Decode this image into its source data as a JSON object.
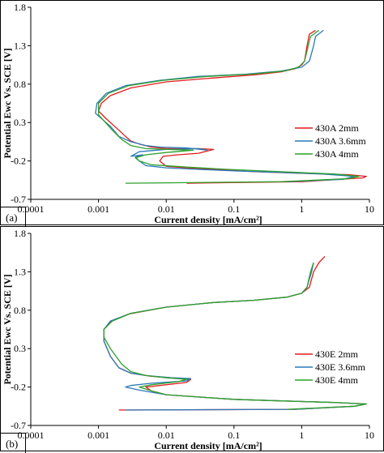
{
  "chart_data": [
    {
      "type": "line",
      "panel_label": "(a)",
      "xlabel": "Current density [mA/cm²]",
      "ylabel": "Potential Ewc Vs. SCE [V]",
      "xscale": "log",
      "xlim": [
        0.0001,
        10
      ],
      "ylim": [
        -0.7,
        1.8
      ],
      "x_ticks": [
        "0.0001",
        "0.001",
        "0.01",
        "0.1",
        "1",
        "10"
      ],
      "y_ticks": [
        "1.8",
        "1.3",
        "0.8",
        "0.3",
        "-0.2",
        "-0.7"
      ],
      "legend_position": "right",
      "series": [
        {
          "name": "430A 2mm",
          "color": "#e41a1c",
          "points": [
            [
              0.02,
              -0.49
            ],
            [
              1,
              -0.47
            ],
            [
              8,
              -0.42
            ],
            [
              9,
              -0.4
            ],
            [
              5,
              -0.38
            ],
            [
              1,
              -0.36
            ],
            [
              0.2,
              -0.34
            ],
            [
              0.05,
              -0.31
            ],
            [
              0.02,
              -0.29
            ],
            [
              0.01,
              -0.27
            ],
            [
              0.008,
              -0.2
            ],
            [
              0.009,
              -0.14
            ],
            [
              0.015,
              -0.12
            ],
            [
              0.03,
              -0.1
            ],
            [
              0.05,
              -0.05
            ],
            [
              0.03,
              -0.04
            ],
            [
              0.01,
              -0.04
            ],
            [
              0.006,
              -0.02
            ],
            [
              0.004,
              0.02
            ],
            [
              0.003,
              0.06
            ],
            [
              0.0025,
              0.12
            ],
            [
              0.002,
              0.2
            ],
            [
              0.0013,
              0.35
            ],
            [
              0.001,
              0.45
            ],
            [
              0.0011,
              0.55
            ],
            [
              0.0015,
              0.65
            ],
            [
              0.003,
              0.75
            ],
            [
              0.01,
              0.83
            ],
            [
              0.05,
              0.88
            ],
            [
              0.2,
              0.92
            ],
            [
              0.5,
              0.96
            ],
            [
              0.8,
              1.0
            ],
            [
              1.0,
              1.05
            ],
            [
              1.1,
              1.1
            ],
            [
              1.2,
              1.3
            ],
            [
              1.3,
              1.45
            ],
            [
              1.6,
              1.5
            ]
          ]
        },
        {
          "name": "430A 3.6mm",
          "color": "#2a7ab8",
          "points": [
            [
              0.6,
              -0.47
            ],
            [
              4,
              -0.44
            ],
            [
              6,
              -0.4
            ],
            [
              2,
              -0.37
            ],
            [
              0.5,
              -0.35
            ],
            [
              0.1,
              -0.33
            ],
            [
              0.03,
              -0.31
            ],
            [
              0.01,
              -0.29
            ],
            [
              0.005,
              -0.26
            ],
            [
              0.004,
              -0.2
            ],
            [
              0.0035,
              -0.15
            ],
            [
              0.0045,
              -0.12
            ],
            [
              0.003,
              -0.14
            ],
            [
              0.004,
              -0.08
            ],
            [
              0.01,
              -0.05
            ],
            [
              0.03,
              -0.04
            ],
            [
              0.04,
              -0.06
            ],
            [
              0.02,
              -0.03
            ],
            [
              0.008,
              -0.02
            ],
            [
              0.005,
              0.0
            ],
            [
              0.003,
              0.05
            ],
            [
              0.002,
              0.12
            ],
            [
              0.0015,
              0.25
            ],
            [
              0.0009,
              0.42
            ],
            [
              0.00095,
              0.55
            ],
            [
              0.0013,
              0.68
            ],
            [
              0.0025,
              0.78
            ],
            [
              0.008,
              0.85
            ],
            [
              0.03,
              0.9
            ],
            [
              0.15,
              0.93
            ],
            [
              0.5,
              0.97
            ],
            [
              1.0,
              1.02
            ],
            [
              1.3,
              1.1
            ],
            [
              1.5,
              1.3
            ],
            [
              1.6,
              1.42
            ],
            [
              2.1,
              1.5
            ]
          ]
        },
        {
          "name": "430A 4mm",
          "color": "#2ca02c",
          "points": [
            [
              0.0025,
              -0.49
            ],
            [
              0.5,
              -0.47
            ],
            [
              5,
              -0.43
            ],
            [
              7,
              -0.4
            ],
            [
              3,
              -0.37
            ],
            [
              0.5,
              -0.34
            ],
            [
              0.08,
              -0.31
            ],
            [
              0.02,
              -0.28
            ],
            [
              0.006,
              -0.25
            ],
            [
              0.004,
              -0.2
            ],
            [
              0.0035,
              -0.16
            ],
            [
              0.005,
              -0.12
            ],
            [
              0.01,
              -0.09
            ],
            [
              0.025,
              -0.06
            ],
            [
              0.01,
              -0.05
            ],
            [
              0.005,
              -0.04
            ],
            [
              0.003,
              0.0
            ],
            [
              0.0022,
              0.08
            ],
            [
              0.0016,
              0.2
            ],
            [
              0.001,
              0.4
            ],
            [
              0.001,
              0.55
            ],
            [
              0.0014,
              0.68
            ],
            [
              0.0028,
              0.78
            ],
            [
              0.009,
              0.85
            ],
            [
              0.04,
              0.9
            ],
            [
              0.18,
              0.93
            ],
            [
              0.55,
              0.97
            ],
            [
              0.9,
              1.02
            ],
            [
              1.1,
              1.1
            ],
            [
              1.25,
              1.3
            ],
            [
              1.35,
              1.42
            ],
            [
              1.8,
              1.5
            ]
          ]
        }
      ]
    },
    {
      "type": "line",
      "panel_label": "(b)",
      "xlabel": "Current density [mA/cm²]",
      "ylabel": "Potential Ewc Vs. SCE [V]",
      "xscale": "log",
      "xlim": [
        0.0001,
        10
      ],
      "ylim": [
        -0.7,
        1.8
      ],
      "x_ticks": [
        "0.0001",
        "0.001",
        "0.01",
        "0.1",
        "1",
        "10"
      ],
      "y_ticks": [
        "1.8",
        "1.3",
        "0.8",
        "0.3",
        "-0.2",
        "-0.7"
      ],
      "legend_position": "right",
      "series": [
        {
          "name": "430E 2mm",
          "color": "#e41a1c",
          "points": [
            [
              0.002,
              -0.5
            ],
            [
              0.8,
              -0.49
            ],
            [
              6,
              -0.45
            ],
            [
              9,
              -0.42
            ],
            [
              3,
              -0.4
            ],
            [
              0.5,
              -0.38
            ],
            [
              0.1,
              -0.36
            ],
            [
              0.03,
              -0.33
            ],
            [
              0.01,
              -0.3
            ],
            [
              0.006,
              -0.25
            ],
            [
              0.005,
              -0.2
            ],
            [
              0.008,
              -0.18
            ],
            [
              0.02,
              -0.14
            ],
            [
              0.023,
              -0.1
            ],
            [
              0.012,
              -0.08
            ],
            [
              0.006,
              -0.06
            ],
            [
              0.003,
              -0.02
            ],
            [
              0.002,
              0.05
            ],
            [
              0.0015,
              0.2
            ],
            [
              0.0012,
              0.4
            ],
            [
              0.0012,
              0.55
            ],
            [
              0.0015,
              0.65
            ],
            [
              0.0028,
              0.75
            ],
            [
              0.01,
              0.84
            ],
            [
              0.05,
              0.9
            ],
            [
              0.2,
              0.93
            ],
            [
              0.6,
              0.97
            ],
            [
              1.0,
              1.02
            ],
            [
              1.3,
              1.1
            ],
            [
              1.5,
              1.3
            ],
            [
              1.8,
              1.42
            ],
            [
              2.2,
              1.5
            ]
          ]
        },
        {
          "name": "430E 3.6mm",
          "color": "#2a7ab8",
          "points": [
            [
              0.0025,
              -0.5
            ],
            [
              0.8,
              -0.49
            ],
            [
              6,
              -0.45
            ],
            [
              9,
              -0.42
            ],
            [
              3,
              -0.4
            ],
            [
              0.5,
              -0.38
            ],
            [
              0.1,
              -0.36
            ],
            [
              0.03,
              -0.33
            ],
            [
              0.01,
              -0.3
            ],
            [
              0.004,
              -0.24
            ],
            [
              0.0025,
              -0.2
            ],
            [
              0.003,
              -0.18
            ],
            [
              0.006,
              -0.15
            ],
            [
              0.02,
              -0.12
            ],
            [
              0.023,
              -0.09
            ],
            [
              0.012,
              -0.08
            ],
            [
              0.005,
              -0.05
            ],
            [
              0.003,
              -0.02
            ],
            [
              0.002,
              0.05
            ],
            [
              0.0015,
              0.2
            ],
            [
              0.0012,
              0.4
            ],
            [
              0.0012,
              0.55
            ],
            [
              0.0015,
              0.66
            ],
            [
              0.003,
              0.76
            ],
            [
              0.01,
              0.84
            ],
            [
              0.05,
              0.9
            ],
            [
              0.2,
              0.93
            ],
            [
              0.6,
              0.97
            ],
            [
              1.0,
              1.02
            ],
            [
              1.2,
              1.1
            ],
            [
              1.4,
              1.3
            ],
            [
              1.5,
              1.42
            ]
          ]
        },
        {
          "name": "430E 4mm",
          "color": "#2ca02c",
          "points": [
            [
              0.6,
              -0.49
            ],
            [
              6,
              -0.45
            ],
            [
              9,
              -0.42
            ],
            [
              3,
              -0.4
            ],
            [
              0.5,
              -0.38
            ],
            [
              0.1,
              -0.36
            ],
            [
              0.03,
              -0.33
            ],
            [
              0.01,
              -0.3
            ],
            [
              0.006,
              -0.25
            ],
            [
              0.004,
              -0.2
            ],
            [
              0.006,
              -0.17
            ],
            [
              0.015,
              -0.13
            ],
            [
              0.02,
              -0.1
            ],
            [
              0.01,
              -0.08
            ],
            [
              0.005,
              -0.05
            ],
            [
              0.003,
              0.0
            ],
            [
              0.0022,
              0.1
            ],
            [
              0.0015,
              0.3
            ],
            [
              0.0012,
              0.45
            ],
            [
              0.0012,
              0.55
            ],
            [
              0.0016,
              0.66
            ],
            [
              0.003,
              0.76
            ],
            [
              0.01,
              0.84
            ],
            [
              0.05,
              0.9
            ],
            [
              0.2,
              0.93
            ],
            [
              0.6,
              0.97
            ],
            [
              1.0,
              1.02
            ],
            [
              1.2,
              1.1
            ],
            [
              1.35,
              1.3
            ],
            [
              1.5,
              1.42
            ]
          ]
        }
      ]
    }
  ]
}
